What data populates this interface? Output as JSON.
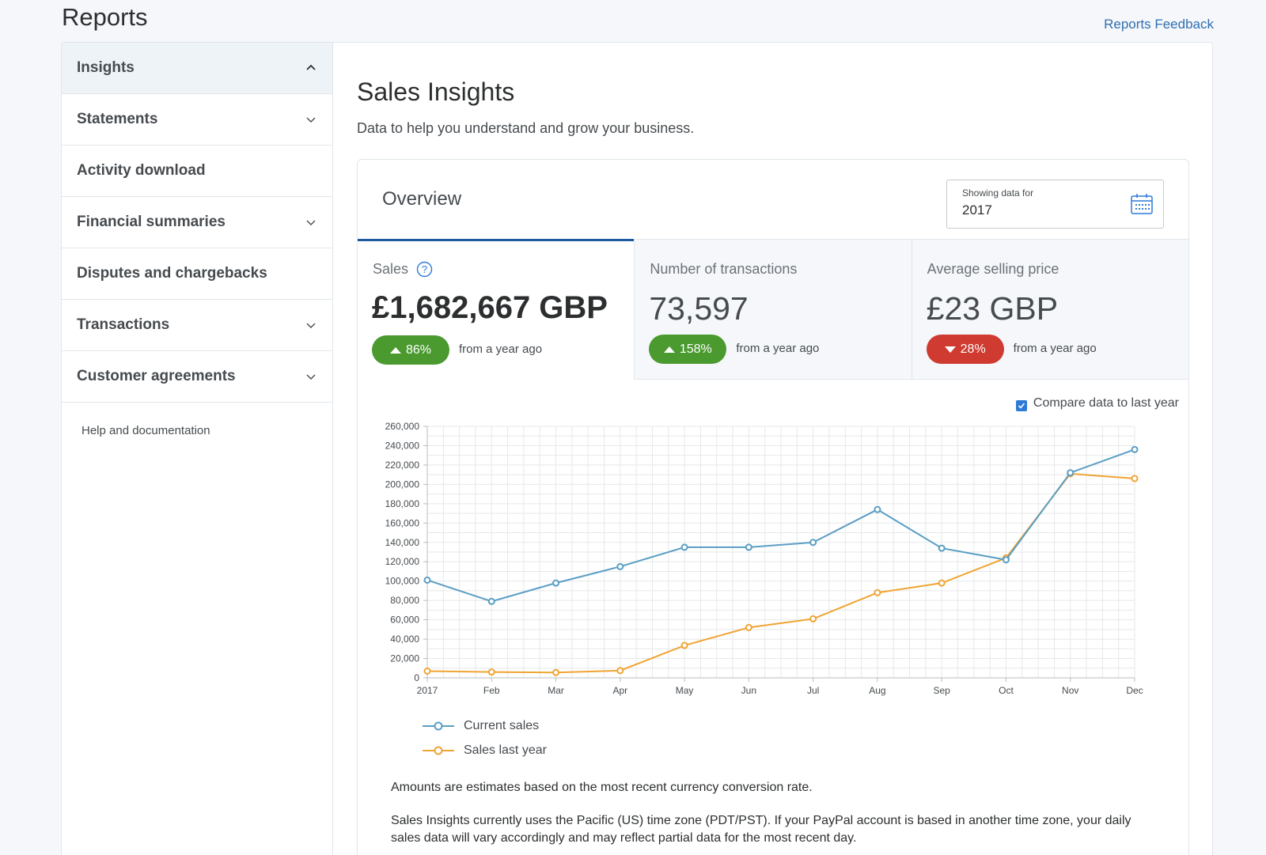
{
  "header": {
    "title": "Reports",
    "feedback_link": "Reports Feedback"
  },
  "sidebar": {
    "items": [
      {
        "label": "Insights",
        "expanded": true
      },
      {
        "label": "Statements",
        "expanded": false
      },
      {
        "label": "Activity download"
      },
      {
        "label": "Financial summaries",
        "expanded": false
      },
      {
        "label": "Disputes and chargebacks"
      },
      {
        "label": "Transactions",
        "expanded": false
      },
      {
        "label": "Customer agreements",
        "expanded": false
      }
    ],
    "help_link": "Help and documentation"
  },
  "main": {
    "title": "Sales Insights",
    "subtitle": "Data to help you understand and grow your business."
  },
  "overview": {
    "title": "Overview",
    "date_label": "Showing data for",
    "date_value": "2017",
    "metrics": [
      {
        "label": "Sales",
        "value": "£1,682,667 GBP",
        "change": "86%",
        "direction": "up",
        "comparison": "from a year ago"
      },
      {
        "label": "Number of transactions",
        "value": "73,597",
        "change": "158%",
        "direction": "up",
        "comparison": "from a year ago"
      },
      {
        "label": "Average selling price",
        "value": "£23 GBP",
        "change": "28%",
        "direction": "down",
        "comparison": "from a year ago"
      }
    ],
    "compare_label": "Compare data to last year",
    "compare_checked": true
  },
  "colors": {
    "current": "#5a9ec4",
    "last_year": "#f0a433",
    "up": "#4a9a2f",
    "down": "#cf3b30",
    "link": "#2f6fb0"
  },
  "chart_data": {
    "type": "line",
    "categories": [
      "2017",
      "Feb",
      "Mar",
      "Apr",
      "May",
      "Jun",
      "Jul",
      "Aug",
      "Sep",
      "Oct",
      "Nov",
      "Dec"
    ],
    "series": [
      {
        "name": "Current sales",
        "values": [
          101000,
          79000,
          98000,
          115000,
          135000,
          135000,
          140000,
          174000,
          134000,
          122000,
          212000,
          236000
        ]
      },
      {
        "name": "Sales last year",
        "values": [
          7000,
          6000,
          5500,
          7500,
          33500,
          52000,
          61000,
          88000,
          98000,
          124000,
          211000,
          206000
        ]
      }
    ],
    "ylim": [
      0,
      260000
    ],
    "yticks": [
      "0",
      "20,000",
      "40,000",
      "60,000",
      "80,000",
      "100,000",
      "120,000",
      "140,000",
      "160,000",
      "180,000",
      "200,000",
      "220,000",
      "240,000",
      "260,000"
    ],
    "grid": true,
    "legend_position": "bottom-left"
  },
  "notes": [
    "Amounts are estimates based on the most recent currency conversion rate.",
    "Sales Insights currently uses the Pacific (US) time zone (PDT/PST). If your PayPal account is based in another time zone, your daily sales data will vary accordingly and may reflect partial data for the most recent day."
  ]
}
